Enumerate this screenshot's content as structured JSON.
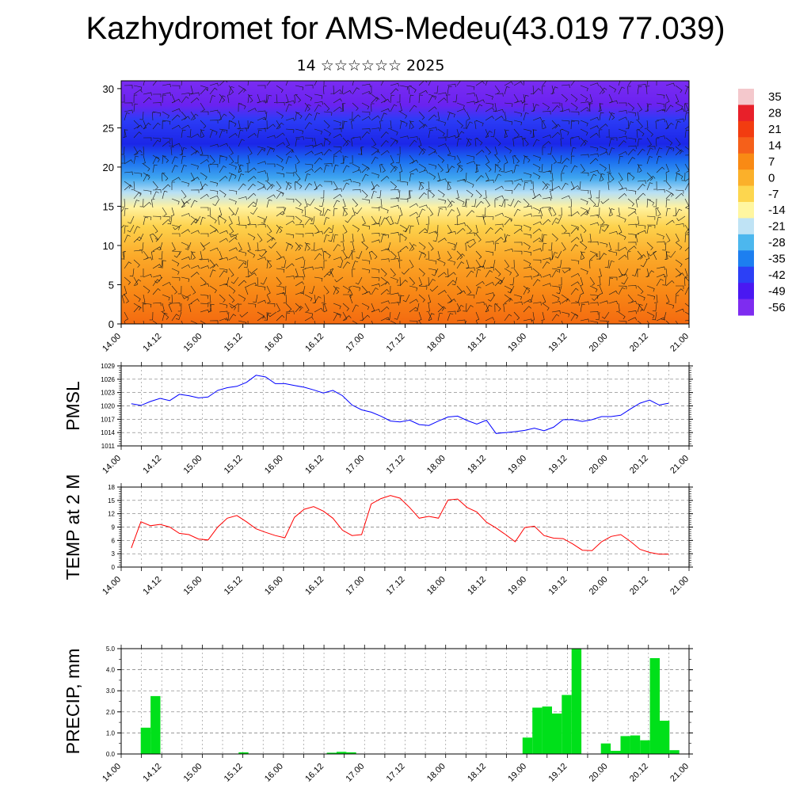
{
  "title": "Kazhydromet for AMS-Medeu(43.019 77.039)",
  "subtitle": "14 ☆☆☆☆☆☆ 2025",
  "chart_data": [
    {
      "type": "heatmap",
      "name": "vertical-section",
      "x_labels": [
        "14.00",
        "14.12",
        "15.00",
        "15.12",
        "16.00",
        "16.12",
        "17.00",
        "17.12",
        "18.00",
        "18.12",
        "19.00",
        "19.12",
        "20.00",
        "20.12",
        "21.00"
      ],
      "ylim": [
        0,
        31
      ],
      "y_ticks": [
        0,
        5,
        10,
        15,
        20,
        25,
        30
      ],
      "colorbar_labels": [
        "35",
        "28",
        "21",
        "14",
        "7",
        "0",
        "-7",
        "-14",
        "-21",
        "-28",
        "-35",
        "-42",
        "-49",
        "-56"
      ],
      "colorbar_colors": [
        "#f4c8cc",
        "#e8202a",
        "#f23c10",
        "#f5601a",
        "#f98a14",
        "#fbb02a",
        "#fdd64e",
        "#fff6a0",
        "#bfe3f5",
        "#4cb7ee",
        "#1d7ff0",
        "#2c40f6",
        "#4a18f2",
        "#7e2cf0"
      ]
    },
    {
      "type": "line",
      "name": "pmsl",
      "ylabel": "PMSL",
      "ylim": [
        1011,
        1029
      ],
      "y_ticks": [
        1011,
        1014,
        1017,
        1020,
        1023,
        1026,
        1029
      ],
      "x_labels": [
        "14.00",
        "14.12",
        "15.00",
        "15.12",
        "16.00",
        "16.12",
        "17.00",
        "17.12",
        "18.00",
        "18.12",
        "19.00",
        "19.12",
        "20.00",
        "20.12",
        "21.00"
      ],
      "color": "#0000ff",
      "values": [
        1020.5,
        1020.1,
        1021.0,
        1021.7,
        1021.2,
        1022.6,
        1022.3,
        1021.8,
        1022.0,
        1023.5,
        1024.1,
        1024.4,
        1025.3,
        1026.9,
        1026.5,
        1025.0,
        1025.0,
        1024.6,
        1024.2,
        1023.6,
        1022.9,
        1023.5,
        1022.3,
        1020.2,
        1019.1,
        1018.6,
        1017.7,
        1016.6,
        1016.4,
        1016.8,
        1015.8,
        1015.6,
        1016.6,
        1017.5,
        1017.7,
        1016.7,
        1015.9,
        1016.8,
        1013.8,
        1014.0,
        1014.2,
        1014.5,
        1015.0,
        1014.4,
        1015.2,
        1016.9,
        1016.9,
        1016.5,
        1016.9,
        1017.6,
        1017.6,
        1017.9,
        1019.3,
        1020.6,
        1021.3,
        1020.2,
        1020.6
      ]
    },
    {
      "type": "line",
      "name": "temp2m",
      "ylabel": "TEMP at 2 M",
      "ylim": [
        0,
        18
      ],
      "y_ticks": [
        0,
        3,
        6,
        9,
        12,
        15,
        18
      ],
      "x_labels": [
        "14.00",
        "14.12",
        "15.00",
        "15.12",
        "16.00",
        "16.12",
        "17.00",
        "17.12",
        "18.00",
        "18.12",
        "19.00",
        "19.12",
        "20.00",
        "20.12",
        "21.00"
      ],
      "color": "#ff0000",
      "values": [
        4.3,
        10.2,
        9.3,
        9.6,
        9.0,
        7.6,
        7.3,
        6.3,
        6.1,
        9.0,
        11.0,
        11.6,
        10.2,
        8.6,
        7.8,
        7.1,
        6.6,
        11.2,
        13.0,
        13.6,
        12.6,
        11.0,
        8.3,
        7.1,
        7.3,
        14.2,
        15.4,
        16.1,
        15.5,
        13.4,
        11.0,
        11.4,
        11.0,
        15.1,
        15.3,
        13.4,
        12.4,
        10.1,
        8.8,
        7.3,
        5.7,
        8.9,
        9.2,
        7.1,
        6.5,
        6.4,
        5.2,
        3.8,
        3.7,
        5.7,
        6.9,
        7.3,
        5.8,
        4.0,
        3.3,
        2.9,
        2.9
      ]
    },
    {
      "type": "bar",
      "name": "precip",
      "ylabel": "PRECIP, mm",
      "ylim": [
        0,
        5
      ],
      "y_ticks": [
        "0.0",
        "1.0",
        "2.0",
        "3.0",
        "4.0",
        "5.0"
      ],
      "x_labels": [
        "14.00",
        "14.12",
        "15.00",
        "15.12",
        "16.00",
        "16.12",
        "17.00",
        "17.12",
        "18.00",
        "18.12",
        "19.00",
        "19.12",
        "20.00",
        "20.12",
        "21.00"
      ],
      "color": "#00e01a",
      "values": [
        0,
        0,
        1.25,
        2.75,
        0,
        0,
        0,
        0,
        0,
        0,
        0,
        0,
        0.08,
        0,
        0,
        0,
        0,
        0,
        0,
        0,
        0,
        0.06,
        0.1,
        0.08,
        0,
        0,
        0,
        0,
        0,
        0,
        0,
        0,
        0,
        0,
        0,
        0,
        0,
        0,
        0,
        0,
        0.02,
        0.78,
        2.2,
        2.25,
        1.92,
        2.8,
        5.0,
        0,
        0,
        0.5,
        0.15,
        0.85,
        0.88,
        0.65,
        4.55,
        1.58,
        0.18,
        0
      ]
    }
  ]
}
